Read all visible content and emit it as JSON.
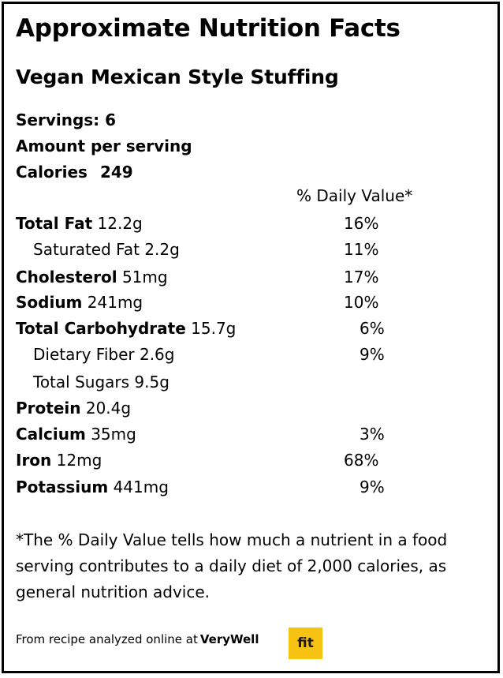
{
  "label": {
    "title": "Approximate Nutrition Facts",
    "recipe_name": "Vegan Mexican Style Stuffing",
    "servings": "Servings: 6",
    "amount_per_serving": "Amount per serving",
    "calories_label": "Calories",
    "calories_value": "249",
    "daily_value_header": "% Daily Value*"
  },
  "nutrients": [
    {
      "name": "Total Fat",
      "amount": "12.2g",
      "dv": "16%",
      "indent": false
    },
    {
      "name": "Saturated Fat",
      "amount": "2.2g",
      "dv": "11%",
      "indent": true
    },
    {
      "name": "Cholesterol",
      "amount": "51mg",
      "dv": "17%",
      "indent": false
    },
    {
      "name": "Sodium",
      "amount": "241mg",
      "dv": "10%",
      "indent": false
    },
    {
      "name": "Total Carbohydrate",
      "amount": "15.7g",
      "dv": "6%",
      "indent": false
    },
    {
      "name": "Dietary Fiber",
      "amount": "2.6g",
      "dv": "9%",
      "indent": true
    },
    {
      "name": "Total Sugars",
      "amount": "9.5g",
      "dv": "",
      "indent": true
    },
    {
      "name": "Protein",
      "amount": "20.4g",
      "dv": "",
      "indent": false
    },
    {
      "name": "Calcium",
      "amount": "35mg",
      "dv": "3%",
      "indent": false
    },
    {
      "name": "Iron",
      "amount": "12mg",
      "dv": "68%",
      "indent": false
    },
    {
      "name": "Potassium",
      "amount": "441mg",
      "dv": "9%",
      "indent": false
    }
  ],
  "footnote": "*The % Daily Value tells how much a nutrient in a food serving contributes to a daily diet of 2,000 calories, as general nutrition advice.",
  "source": {
    "text": "From recipe analyzed online at",
    "brand": "VeryWell",
    "badge": "fit",
    "badge_color": "#f7c313"
  }
}
